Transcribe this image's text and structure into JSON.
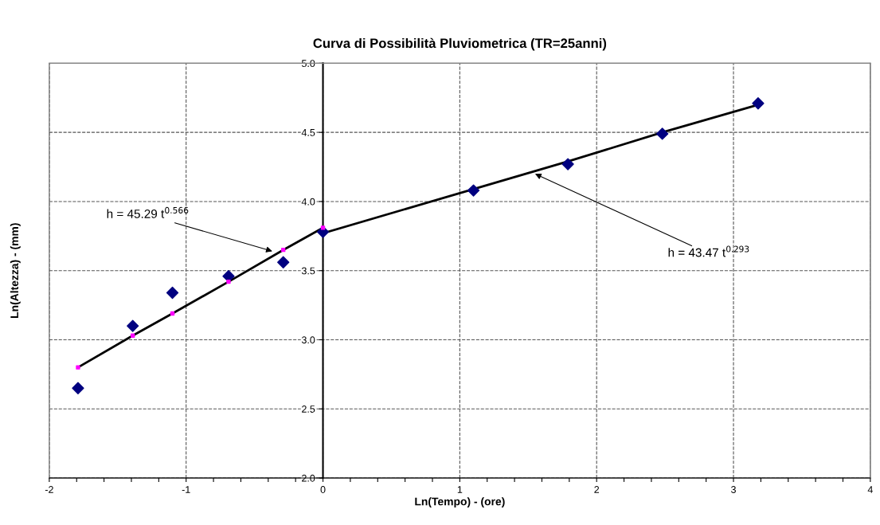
{
  "chart_data": {
    "type": "scatter",
    "title": "Curva di Possibilità Pluviometrica (TR=25anni)",
    "xlabel": "Ln(Tempo) - (ore)",
    "ylabel": "Ln(Altezza) - (mm)",
    "x": [
      -1.79,
      -1.39,
      -1.1,
      -0.69,
      -0.29,
      0,
      1.1,
      1.79,
      2.48,
      3.18
    ],
    "series": [
      {
        "color": "#000080",
        "marker": "diamond",
        "values": [
          2.65,
          3.1,
          3.34,
          3.46,
          3.56,
          3.78,
          4.08,
          4.27,
          4.49,
          4.71
        ]
      },
      {
        "type": "line",
        "color": "#000000",
        "marker": "none",
        "x": [
          -1.79,
          -1.39,
          -1.1,
          -0.69,
          -0.29,
          0
        ],
        "values": [
          2.8,
          3.03,
          3.19,
          3.42,
          3.65,
          3.81
        ]
      },
      {
        "color": "#ff00ff",
        "marker": "square",
        "x": [
          -1.79,
          -1.39,
          -1.1,
          -0.69,
          -0.29,
          0
        ],
        "values": [
          2.8,
          3.03,
          3.19,
          3.42,
          3.65,
          3.81
        ]
      },
      {
        "type": "line",
        "color": "#000000",
        "marker": "none",
        "x": [
          0,
          1.1,
          1.79,
          2.48,
          3.18
        ],
        "values": [
          3.77,
          4.09,
          4.29,
          4.5,
          4.7
        ]
      }
    ],
    "xlim": [
      -2,
      4
    ],
    "ylim": [
      2,
      5
    ],
    "xticks": [
      -2,
      {
        "value": -1.8,
        "label": null
      },
      {
        "value": -1.6,
        "label": null
      },
      {
        "value": -1.4,
        "label": null
      },
      {
        "value": -1.2,
        "label": null
      },
      -1,
      {
        "value": -0.8,
        "label": null
      },
      {
        "value": -0.6,
        "label": null
      },
      {
        "value": -0.4,
        "label": null
      },
      {
        "value": -0.2,
        "label": null
      },
      0,
      {
        "value": 0.2,
        "label": null
      },
      {
        "value": 0.4,
        "label": null
      },
      {
        "value": 0.6,
        "label": null
      },
      {
        "value": 0.8,
        "label": null
      },
      1,
      {
        "value": 1.2,
        "label": null
      },
      {
        "value": 1.4,
        "label": null
      },
      {
        "value": 1.6,
        "label": null
      },
      {
        "value": 1.8,
        "label": null
      },
      2,
      {
        "value": 2.2,
        "label": null
      },
      {
        "value": 2.4,
        "label": null
      },
      {
        "value": 2.6,
        "label": null
      },
      {
        "value": 2.8,
        "label": null
      },
      3,
      {
        "value": 3.2,
        "label": null
      },
      {
        "value": 3.4,
        "label": null
      },
      {
        "value": 3.6,
        "label": null
      },
      {
        "value": 3.8,
        "label": null
      },
      4
    ],
    "yticks": [
      {
        "value": 2,
        "label": "2.0"
      },
      {
        "value": 2.5,
        "label": "2.5"
      },
      {
        "value": 3,
        "label": "3.0"
      },
      {
        "value": 3.5,
        "label": "3.5"
      },
      {
        "value": 4,
        "label": "4.0"
      },
      {
        "value": 4.5,
        "label": "4.5"
      },
      {
        "value": 5,
        "label": "5.0"
      }
    ],
    "grid": true,
    "legend": false,
    "annotations": [
      {
        "text": "h = 45.29 t$^{0.566}$",
        "x": -0.37,
        "y": 3.64
      },
      {
        "text": "h = 43.47 t$^{0.293}$",
        "x": 1.55,
        "y": 4.2
      }
    ]
  }
}
